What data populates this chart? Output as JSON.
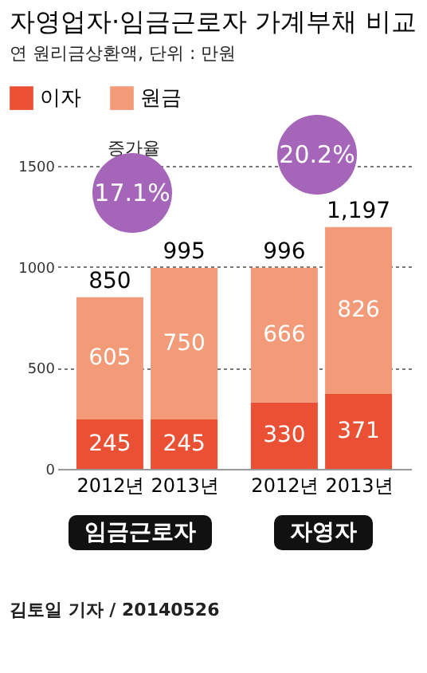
{
  "chart_data": {
    "type": "bar",
    "title": "자영업자·임금근로자 가계부채 비교",
    "subtitle": "연 원리금상환액, 단위 : 만원",
    "categories": [
      "2012년",
      "2013년",
      "2012년",
      "2013년"
    ],
    "series": [
      {
        "name": "이자",
        "color": "#ea5034",
        "values": [
          245,
          245,
          330,
          371
        ]
      },
      {
        "name": "원금",
        "color": "#f39a78",
        "values": [
          605,
          750,
          666,
          826
        ]
      }
    ],
    "stacked": true,
    "data_labels": true,
    "totals": [
      "850",
      "995",
      "996",
      "1,197"
    ],
    "ylim": [
      0,
      1500
    ],
    "yticks": [
      0,
      500,
      1000,
      1500
    ],
    "grid": "y",
    "legend": "top left",
    "annotations": [
      "증가율",
      "17.1%",
      "20.2%",
      "임금근로자",
      "자영자",
      "김토일 기자 / 20140526"
    ]
  }
}
